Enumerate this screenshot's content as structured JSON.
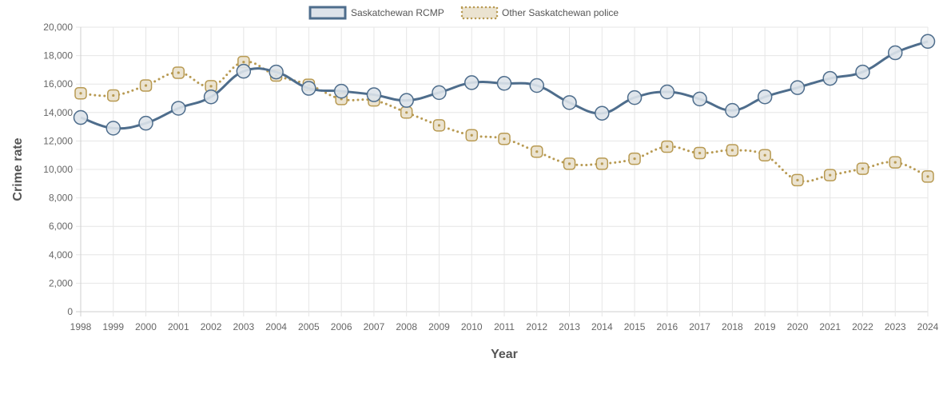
{
  "chart_data": {
    "type": "line",
    "title": "",
    "xlabel": "Year",
    "ylabel": "Crime rate",
    "x": [
      1998,
      1999,
      2000,
      2001,
      2002,
      2003,
      2004,
      2005,
      2006,
      2007,
      2008,
      2009,
      2010,
      2011,
      2012,
      2013,
      2014,
      2015,
      2016,
      2017,
      2018,
      2019,
      2020,
      2021,
      2022,
      2023,
      2024
    ],
    "ylim": [
      0,
      20000
    ],
    "y_ticks": [
      "0",
      "2,000",
      "4,000",
      "6,000",
      "8,000",
      "10,000",
      "12,000",
      "14,000",
      "16,000",
      "18,000",
      "20,000"
    ],
    "grid": true,
    "legend_position": "top-center",
    "series": [
      {
        "name": "Saskatchewan RCMP",
        "style": "solid",
        "color": "#4e6d8c",
        "fill": "#dde3ea",
        "values": [
          13650,
          12900,
          13250,
          14300,
          15100,
          16900,
          16850,
          15700,
          15500,
          15250,
          14850,
          15400,
          16100,
          16050,
          15900,
          14700,
          13950,
          15050,
          15450,
          14950,
          14150,
          15100,
          15750,
          16400,
          16850,
          18200,
          19000
        ]
      },
      {
        "name": "Other Saskatchewan police",
        "style": "dotted",
        "color": "#b89a52",
        "fill": "#ebe3d0",
        "values": [
          15350,
          15200,
          15900,
          16800,
          15850,
          17550,
          16600,
          15950,
          14950,
          14850,
          14000,
          13100,
          12400,
          12150,
          11250,
          10400,
          10400,
          10750,
          11600,
          11150,
          11350,
          11000,
          9250,
          9600,
          10050,
          10500,
          9500
        ]
      }
    ]
  }
}
